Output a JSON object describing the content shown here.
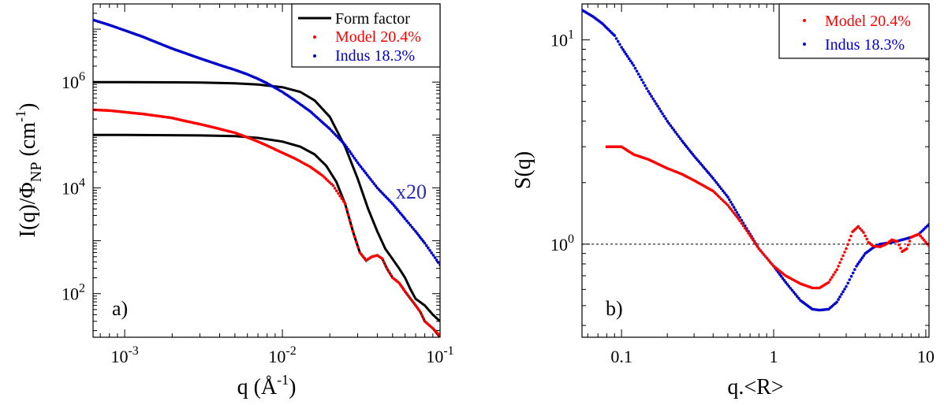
{
  "chart_data": [
    {
      "type": "scatter",
      "panel_label": "a)",
      "annotation": "x20",
      "xlabel": {
        "main": "q (Å",
        "sup": "-1",
        "tail": ")"
      },
      "ylabel": {
        "p1": "I(q)/Φ",
        "sub": "NP",
        "p2": " (cm",
        "sup": "-1",
        "p3": ")"
      },
      "xscale": "log",
      "yscale": "log",
      "xlim": [
        0.00063,
        0.1
      ],
      "ylim": [
        15,
        30000000.0
      ],
      "xticks": [
        {
          "v": 0.001,
          "base": "10",
          "exp": "-3"
        },
        {
          "v": 0.01,
          "base": "10",
          "exp": "-2"
        },
        {
          "v": 0.1,
          "base": "10",
          "exp": "-1"
        }
      ],
      "yticks": [
        {
          "v": 100,
          "base": "10",
          "exp": "2"
        },
        {
          "v": 10000,
          "base": "10",
          "exp": "4"
        },
        {
          "v": 1000000,
          "base": "10",
          "exp": "6"
        }
      ],
      "legend_position": "top-right",
      "legend": [
        {
          "label": "Form factor",
          "style": "line",
          "color": "#000000"
        },
        {
          "label": "Model 20.4%",
          "style": "dots",
          "color": "#ff0000"
        },
        {
          "label": "Indus 18.3%",
          "style": "dots",
          "color": "#0000cc"
        }
      ],
      "series": [
        {
          "name": "Form factor",
          "style": "line",
          "color": "#000000",
          "x": [
            0.00063,
            0.001,
            0.002,
            0.003,
            0.005,
            0.007,
            0.01,
            0.013,
            0.016,
            0.02,
            0.025,
            0.03,
            0.035,
            0.04,
            0.045,
            0.05,
            0.055,
            0.06,
            0.065,
            0.07,
            0.08,
            0.09,
            0.1
          ],
          "y": [
            1000000.0,
            1000000.0,
            990000.0,
            980000.0,
            950000.0,
            900000.0,
            800000.0,
            650000.0,
            450000.0,
            220000.0,
            60000.0,
            15000.0,
            4000.0,
            1500.0,
            700,
            450,
            300,
            200,
            120,
            80,
            60,
            40,
            30
          ]
        },
        {
          "name": "Form factor",
          "style": "line",
          "color": "#000000",
          "x": [
            0.00063,
            0.001,
            0.002,
            0.003,
            0.005,
            0.007,
            0.01,
            0.013,
            0.016,
            0.019,
            0.022,
            0.025,
            0.028,
            0.031,
            0.034,
            0.037,
            0.04,
            0.043,
            0.046,
            0.05,
            0.055,
            0.06,
            0.065,
            0.07,
            0.075,
            0.08,
            0.09,
            0.1
          ],
          "y": [
            100000.0,
            100000.0,
            99000.0,
            98000.0,
            95000.0,
            88000.0,
            75000.0,
            60000.0,
            43000.0,
            26000.0,
            13000.0,
            5000.0,
            1500.0,
            600,
            420,
            500,
            530,
            460,
            300,
            200,
            160,
            110,
            80,
            60,
            45,
            30,
            22,
            15
          ]
        },
        {
          "name": "Indus 18.3%",
          "style": "dots",
          "color": "#0000cc",
          "x": [
            0.00063,
            0.0008,
            0.001,
            0.0013,
            0.0016,
            0.002,
            0.0025,
            0.003,
            0.004,
            0.005,
            0.006,
            0.007,
            0.008,
            0.01,
            0.012,
            0.015,
            0.02,
            0.025,
            0.03,
            0.04,
            0.05,
            0.06,
            0.07,
            0.08,
            0.1
          ],
          "y": [
            15000000.0,
            12000000.0,
            9500000.0,
            7200000.0,
            5600000.0,
            4300000.0,
            3400000.0,
            2800000.0,
            2100000.0,
            1700000.0,
            1400000.0,
            1150000.0,
            950000.0,
            650000.0,
            450000.0,
            280000.0,
            130000.0,
            65000.0,
            30000.0,
            10000.0,
            5000.0,
            2600.0,
            1500.0,
            900,
            350
          ]
        },
        {
          "name": "Model 20.4%",
          "style": "dots",
          "color": "#ff0000",
          "x": [
            0.00063,
            0.0008,
            0.001,
            0.0013,
            0.0016,
            0.002,
            0.0025,
            0.003,
            0.004,
            0.005,
            0.006,
            0.007,
            0.008,
            0.01,
            0.012,
            0.015,
            0.018,
            0.021,
            0.025,
            0.028,
            0.031,
            0.034,
            0.037,
            0.04,
            0.043,
            0.046,
            0.05,
            0.055,
            0.06,
            0.065,
            0.07,
            0.075,
            0.08,
            0.09,
            0.1
          ],
          "y": [
            300000.0,
            290000.0,
            270000.0,
            250000.0,
            230000.0,
            210000.0,
            180000.0,
            160000.0,
            130000.0,
            110000.0,
            90000.0,
            75000.0,
            63000.0,
            46000.0,
            36000.0,
            25000.0,
            17000.0,
            11000.0,
            5000.0,
            1500.0,
            600,
            430,
            500,
            530,
            460,
            300,
            200,
            160,
            110,
            80,
            60,
            45,
            30,
            22,
            16
          ]
        }
      ]
    },
    {
      "type": "scatter",
      "panel_label": "b)",
      "xlabel": {
        "main": "q.<R>"
      },
      "ylabel": {
        "p1": "S(q)"
      },
      "xscale": "log",
      "yscale": "log",
      "xlim": [
        0.055,
        10.5
      ],
      "ylim": [
        0.35,
        15
      ],
      "xticks": [
        {
          "v": 0.1,
          "text": "0.1"
        },
        {
          "v": 1,
          "text": "1"
        },
        {
          "v": 10,
          "text": "10"
        }
      ],
      "yticks": [
        {
          "v": 1,
          "base": "10",
          "exp": "0"
        },
        {
          "v": 10,
          "base": "10",
          "exp": "1"
        }
      ],
      "reference_line": 1,
      "legend_position": "top-right",
      "legend": [
        {
          "label": "Model 20.4%",
          "style": "dots",
          "color": "#ff0000"
        },
        {
          "label": "Indus 18.3%",
          "style": "dots",
          "color": "#0000cc"
        }
      ],
      "series": [
        {
          "name": "Indus 18.3%",
          "style": "dots",
          "color": "#0000cc",
          "x": [
            0.055,
            0.065,
            0.075,
            0.09,
            0.1,
            0.12,
            0.15,
            0.2,
            0.25,
            0.3,
            0.4,
            0.5,
            0.6,
            0.7,
            0.8,
            1.0,
            1.2,
            1.5,
            1.8,
            2.0,
            2.3,
            2.6,
            3.0,
            3.5,
            4.0,
            4.5,
            5,
            6,
            7,
            8,
            9,
            10.5
          ],
          "y": [
            14,
            13,
            12,
            10.5,
            9.2,
            7.5,
            5.6,
            4.0,
            3.2,
            2.7,
            2.1,
            1.7,
            1.35,
            1.12,
            0.95,
            0.78,
            0.65,
            0.53,
            0.48,
            0.475,
            0.48,
            0.52,
            0.62,
            0.78,
            0.9,
            0.96,
            1.0,
            1.02,
            1.05,
            1.08,
            1.12,
            1.25
          ]
        },
        {
          "name": "Model 20.4%",
          "style": "dots",
          "color": "#ff0000",
          "x": [
            0.08,
            0.1,
            0.12,
            0.15,
            0.2,
            0.25,
            0.3,
            0.4,
            0.5,
            0.6,
            0.7,
            0.8,
            1.0,
            1.2,
            1.5,
            1.8,
            2.0,
            2.3,
            2.6,
            3.0,
            3.3,
            3.6,
            3.9,
            4.2,
            4.5,
            5,
            5.5,
            6,
            6.5,
            7,
            7.5,
            8,
            9,
            10.5
          ],
          "y": [
            3.0,
            3.0,
            2.75,
            2.6,
            2.35,
            2.2,
            2.05,
            1.82,
            1.55,
            1.3,
            1.1,
            0.95,
            0.78,
            0.7,
            0.64,
            0.61,
            0.61,
            0.65,
            0.75,
            0.95,
            1.15,
            1.22,
            1.14,
            1.02,
            0.98,
            0.97,
            1.0,
            1.05,
            1.03,
            0.92,
            0.95,
            1.08,
            1.12,
            0.98
          ]
        }
      ]
    }
  ]
}
